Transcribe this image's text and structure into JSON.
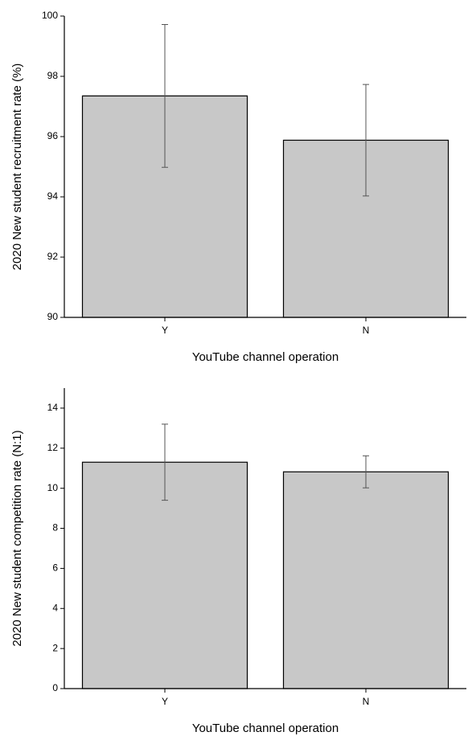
{
  "chart_data": [
    {
      "type": "bar",
      "x_label": "YouTube channel operation",
      "y_label": "2020 New student recruitment rate (%)",
      "categories": [
        "Y",
        "N"
      ],
      "values": [
        97.35,
        95.88
      ],
      "errors": [
        2.37,
        1.85
      ],
      "color": "#c8c8c8",
      "ylim": [
        90,
        100
      ],
      "yticks": [
        90,
        92,
        94,
        96,
        98,
        100
      ]
    },
    {
      "type": "bar",
      "x_label": "YouTube channel operation",
      "y_label": "2020 New student competition rate (N:1)",
      "categories": [
        "Y",
        "N"
      ],
      "values": [
        11.3,
        10.82
      ],
      "errors": [
        1.9,
        0.8
      ],
      "color": "#c8c8c8",
      "ylim": [
        0,
        15
      ],
      "yticks": [
        0,
        2,
        4,
        6,
        8,
        10,
        12,
        14
      ]
    }
  ]
}
